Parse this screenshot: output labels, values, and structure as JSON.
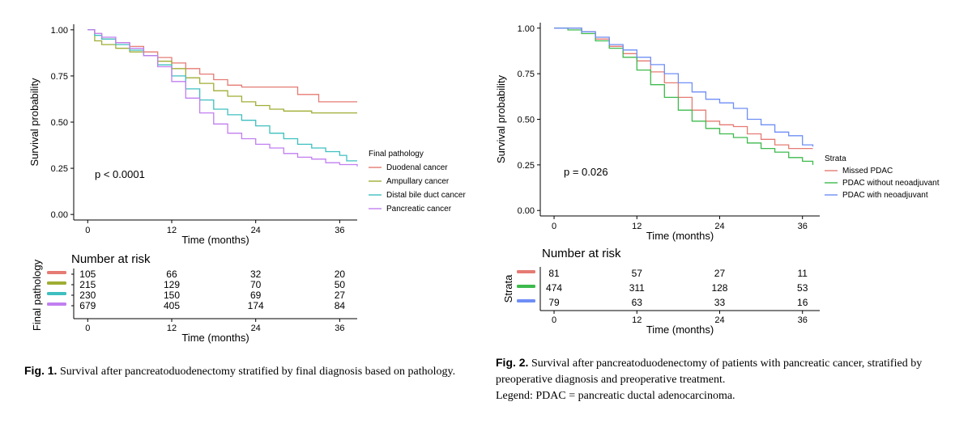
{
  "chart_data": [
    {
      "type": "line",
      "xlabel": "Time (months)",
      "ylabel": "Survival probability",
      "xticks": [
        "0",
        "12",
        "24",
        "36"
      ],
      "yticks": [
        "0.00",
        "0.25",
        "0.50",
        "0.75",
        "1.00"
      ],
      "xlim": [
        -2,
        38.5
      ],
      "ylim": [
        -0.03,
        1.03
      ],
      "pvalue": "p < 0.0001",
      "legend_title": "Final pathology",
      "legend_position": "right",
      "series": [
        {
          "name": "Duodenal cancer",
          "color": "#e57b73",
          "x": [
            0,
            1,
            2,
            4,
            6,
            8,
            10,
            12,
            14,
            16,
            18,
            20,
            22,
            24,
            26,
            28,
            30,
            32,
            33,
            36,
            38.5
          ],
          "y": [
            1.0,
            0.98,
            0.95,
            0.93,
            0.91,
            0.88,
            0.85,
            0.82,
            0.79,
            0.76,
            0.73,
            0.7,
            0.69,
            0.69,
            0.69,
            0.69,
            0.65,
            0.65,
            0.61,
            0.61,
            0.61
          ]
        },
        {
          "name": "Ampullary cancer",
          "color": "#a0ad34",
          "x": [
            0,
            1,
            2,
            4,
            6,
            8,
            10,
            12,
            14,
            16,
            18,
            20,
            22,
            24,
            26,
            28,
            30,
            32,
            34,
            36,
            38.5
          ],
          "y": [
            1.0,
            0.94,
            0.92,
            0.9,
            0.88,
            0.86,
            0.83,
            0.79,
            0.74,
            0.71,
            0.67,
            0.64,
            0.61,
            0.59,
            0.57,
            0.56,
            0.56,
            0.55,
            0.55,
            0.55,
            0.55
          ]
        },
        {
          "name": "Distal bile duct cancer",
          "color": "#3fbfc0",
          "x": [
            0,
            1,
            2,
            4,
            6,
            8,
            10,
            12,
            14,
            16,
            18,
            20,
            22,
            24,
            26,
            28,
            30,
            32,
            34,
            36,
            37,
            38.5
          ],
          "y": [
            1.0,
            0.97,
            0.95,
            0.92,
            0.89,
            0.86,
            0.81,
            0.75,
            0.68,
            0.62,
            0.57,
            0.54,
            0.51,
            0.48,
            0.44,
            0.41,
            0.38,
            0.36,
            0.34,
            0.32,
            0.29,
            0.29
          ]
        },
        {
          "name": "Pancreatic cancer",
          "color": "#c17ff0",
          "x": [
            0,
            1,
            2,
            4,
            6,
            8,
            10,
            12,
            14,
            16,
            18,
            20,
            22,
            24,
            26,
            28,
            30,
            32,
            34,
            36,
            38.5
          ],
          "y": [
            1.0,
            0.98,
            0.96,
            0.93,
            0.9,
            0.86,
            0.8,
            0.72,
            0.63,
            0.55,
            0.49,
            0.44,
            0.41,
            0.38,
            0.36,
            0.33,
            0.31,
            0.3,
            0.28,
            0.27,
            0.26
          ]
        }
      ],
      "risk_table": {
        "title": "Number at risk",
        "ylabel": "Final pathology",
        "xlabel": "Time (months)",
        "xticks": [
          "0",
          "12",
          "24",
          "36"
        ],
        "rows": [
          {
            "color": "#e57b73",
            "values": [
              "105",
              "66",
              "32",
              "20"
            ]
          },
          {
            "color": "#a0ad34",
            "values": [
              "215",
              "129",
              "70",
              "50"
            ]
          },
          {
            "color": "#3fbfc0",
            "values": [
              "230",
              "150",
              "69",
              "27"
            ]
          },
          {
            "color": "#c17ff0",
            "values": [
              "679",
              "405",
              "174",
              "84"
            ]
          }
        ]
      }
    },
    {
      "type": "line",
      "xlabel": "Time (months)",
      "ylabel": "Survival probability",
      "xticks": [
        "0",
        "12",
        "24",
        "36"
      ],
      "yticks": [
        "0.00",
        "0.25",
        "0.50",
        "0.75",
        "1.00"
      ],
      "xlim": [
        -2,
        38.5
      ],
      "ylim": [
        -0.03,
        1.03
      ],
      "pvalue": "p = 0.026",
      "legend_title": "Strata",
      "legend_position": "right",
      "series": [
        {
          "name": "Missed PDAC",
          "color": "#e57b73",
          "x": [
            0,
            2,
            4,
            6,
            8,
            10,
            12,
            14,
            16,
            18,
            20,
            22,
            24,
            26,
            28,
            30,
            32,
            34,
            36,
            37.5
          ],
          "y": [
            1.0,
            1.0,
            0.98,
            0.94,
            0.9,
            0.86,
            0.82,
            0.76,
            0.7,
            0.62,
            0.55,
            0.49,
            0.47,
            0.46,
            0.42,
            0.39,
            0.36,
            0.34,
            0.34,
            0.34
          ]
        },
        {
          "name": "PDAC without neoadjuvant",
          "color": "#3dba4c",
          "x": [
            0,
            2,
            4,
            6,
            8,
            10,
            12,
            14,
            16,
            18,
            20,
            22,
            24,
            26,
            28,
            30,
            32,
            34,
            36,
            37.5
          ],
          "y": [
            1.0,
            0.99,
            0.97,
            0.93,
            0.89,
            0.84,
            0.77,
            0.69,
            0.62,
            0.55,
            0.49,
            0.45,
            0.42,
            0.4,
            0.37,
            0.34,
            0.32,
            0.29,
            0.27,
            0.25
          ]
        },
        {
          "name": "PDAC with neoadjuvant",
          "color": "#6e8ef5",
          "x": [
            0,
            2,
            4,
            6,
            8,
            10,
            12,
            14,
            16,
            18,
            20,
            22,
            24,
            26,
            28,
            30,
            32,
            34,
            36,
            37.5
          ],
          "y": [
            1.0,
            1.0,
            0.98,
            0.95,
            0.91,
            0.88,
            0.84,
            0.8,
            0.75,
            0.7,
            0.65,
            0.61,
            0.59,
            0.56,
            0.5,
            0.47,
            0.43,
            0.41,
            0.36,
            0.35
          ]
        }
      ],
      "risk_table": {
        "title": "Number at risk",
        "ylabel": "Strata",
        "xlabel": "Time (months)",
        "xticks": [
          "0",
          "12",
          "24",
          "36"
        ],
        "rows": [
          {
            "color": "#e57b73",
            "values": [
              "81",
              "57",
              "27",
              "11"
            ]
          },
          {
            "color": "#3dba4c",
            "values": [
              "474",
              "311",
              "128",
              "53"
            ]
          },
          {
            "color": "#6e8ef5",
            "values": [
              "79",
              "63",
              "33",
              "16"
            ]
          }
        ]
      }
    }
  ],
  "captions": [
    {
      "label": "Fig. 1.",
      "text": "Survival after pancreatoduodenectomy stratified by final diagnosis based on pathology."
    },
    {
      "label": "Fig. 2.",
      "text": "Survival after pancreatoduodenectomy of patients with pancreatic cancer, stratified by preoperative diagnosis and preoperative treatment.",
      "legend": "Legend: PDAC = pancreatic ductal adenocarcinoma."
    }
  ]
}
